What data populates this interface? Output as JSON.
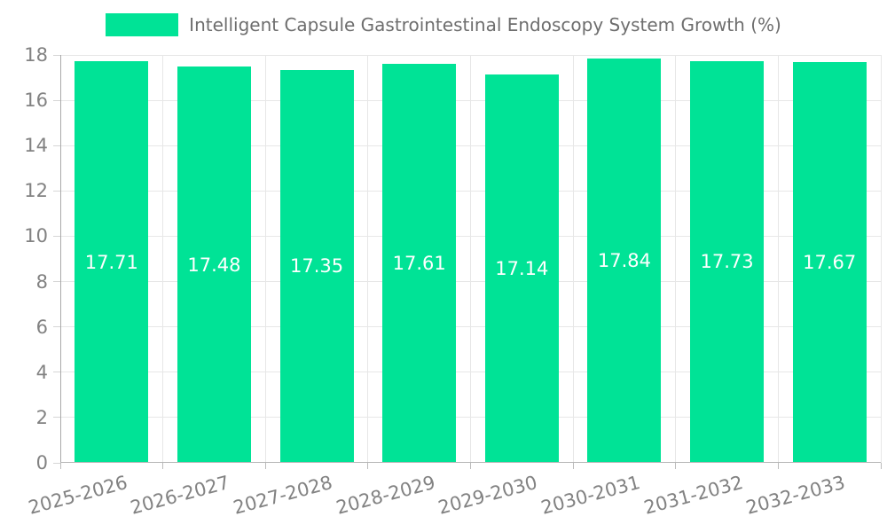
{
  "chart_data": {
    "type": "bar",
    "series_name": "Intelligent Capsule Gastrointestinal Endoscopy System Growth (%)",
    "categories": [
      "2025-2026",
      "2026-2027",
      "2027-2028",
      "2028-2029",
      "2029-2030",
      "2030-2031",
      "2031-2032",
      "2032-2033"
    ],
    "values": [
      17.71,
      17.48,
      17.35,
      17.61,
      17.14,
      17.84,
      17.73,
      17.67
    ],
    "value_labels": [
      "17.71",
      "17.48",
      "17.35",
      "17.61",
      "17.14",
      "17.84",
      "17.73",
      "17.67"
    ],
    "ylim": [
      0,
      18
    ],
    "yticks": [
      0,
      2,
      4,
      6,
      8,
      10,
      12,
      14,
      16,
      18
    ],
    "xlabel": "",
    "ylabel": "",
    "title": "",
    "grid": true,
    "legend_position": "top",
    "x_label_rotation_deg": -15,
    "colors": {
      "bar": "#00E396",
      "value_label": "#ffffff",
      "axis_label": "#828282",
      "legend_label": "#6e6e6e",
      "gridline": "#e7e7e7",
      "axis_line": "#b6b6b6"
    }
  }
}
